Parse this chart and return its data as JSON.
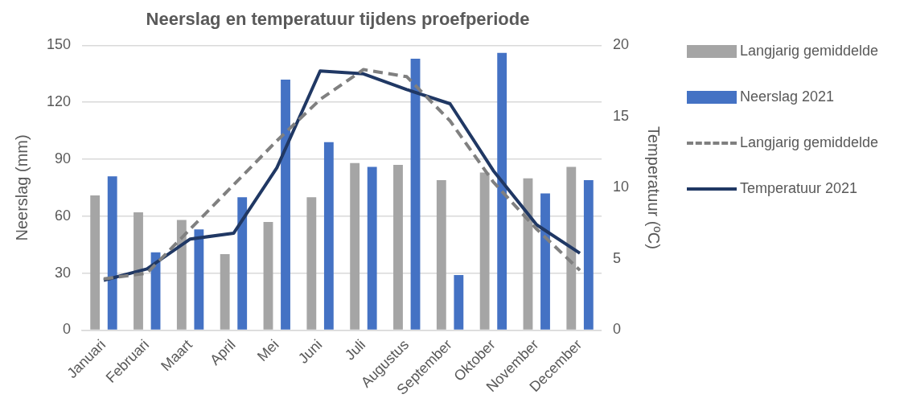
{
  "chart_data": {
    "type": "bar",
    "title": "Neerslag en temperatuur tijdens proefperiode",
    "ylabel": "Neerslag (mm)",
    "y2label": "Temperatuur (ºC)",
    "categories": [
      "Januari",
      "Februari",
      "Maart",
      "April",
      "Mei",
      "Juni",
      "Juli",
      "Augustus",
      "September",
      "Oktober",
      "November",
      "December"
    ],
    "series": [
      {
        "name": "Langjarig gemiddelde",
        "color": "#a5a5a5",
        "values": [
          71,
          62,
          58,
          40,
          57,
          70,
          88,
          87,
          79,
          83,
          80,
          86
        ]
      },
      {
        "name": "Neerslag 2021",
        "color": "#4472c4",
        "values": [
          81,
          41,
          53,
          70,
          132,
          99,
          86,
          143,
          29,
          146,
          72,
          79
        ]
      },
      {
        "name": "Langjarig gemiddelde",
        "type": "line",
        "axis": "y2",
        "color": "#808080",
        "line_style": "dashed",
        "values": [
          3.6,
          4.0,
          7.1,
          10.2,
          13.3,
          16.2,
          18.3,
          17.8,
          14.7,
          10.4,
          7.1,
          4.2
        ]
      },
      {
        "name": "Temperatuur 2021",
        "type": "line",
        "axis": "y2",
        "color": "#203864",
        "line_style": "solid",
        "values": [
          3.5,
          4.3,
          6.4,
          6.8,
          11.4,
          18.2,
          18.0,
          16.9,
          15.9,
          11.2,
          7.4,
          5.4
        ]
      }
    ],
    "ylim": [
      0,
      150
    ],
    "yticks": [
      0,
      30,
      60,
      90,
      120,
      150
    ],
    "y2lim": [
      0,
      20
    ],
    "y2ticks": [
      0,
      5,
      10,
      15,
      20
    ],
    "grid": "y",
    "legend": "right",
    "marker": "none"
  }
}
